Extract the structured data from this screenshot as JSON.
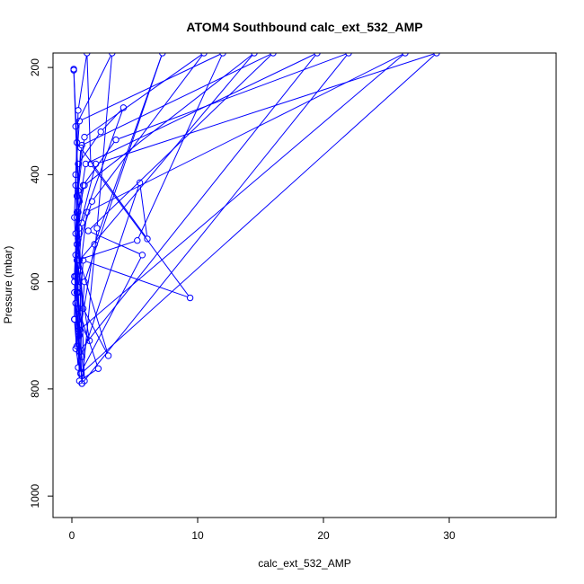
{
  "chart_data": {
    "type": "line",
    "title": "ATOM4 Southbound calc_ext_532_AMP",
    "xlabel": "calc_ext_532_AMP",
    "ylabel": "Pressure (mbar)",
    "xlim": [
      -1.5,
      38.5
    ],
    "ylim": [
      1040,
      173
    ],
    "y_reversed": true,
    "x_ticks": [
      0,
      10,
      20,
      30
    ],
    "y_ticks": [
      200,
      400,
      600,
      800,
      1000
    ],
    "grid": false,
    "legend": "none",
    "series": [
      {
        "color": "#0000ff",
        "marker": "open-circle",
        "line": true,
        "points": [
          [
            0.15,
            203
          ],
          [
            0.4,
            340
          ],
          [
            0.2,
            480
          ],
          [
            0.5,
            620
          ],
          [
            0.8,
            790
          ],
          [
            2.0,
            500
          ],
          [
            3.2,
            173
          ],
          [
            0.3,
            310
          ],
          [
            0.6,
            450
          ],
          [
            0.2,
            600
          ],
          [
            0.4,
            720
          ],
          [
            0.9,
            560
          ],
          [
            9.4,
            630
          ],
          [
            1.5,
            380
          ],
          [
            1.2,
            173
          ],
          [
            0.5,
            280
          ],
          [
            0.3,
            420
          ],
          [
            0.6,
            580
          ],
          [
            0.8,
            740
          ],
          [
            5.4,
            415
          ],
          [
            6.0,
            520
          ],
          [
            0.7,
            350
          ],
          [
            0.4,
            470
          ],
          [
            0.2,
            670
          ],
          [
            0.5,
            760
          ],
          [
            1.0,
            600
          ],
          [
            7.2,
            173
          ],
          [
            1.8,
            530
          ],
          [
            0.6,
            700
          ],
          [
            0.3,
            510
          ],
          [
            0.5,
            380
          ],
          [
            2.3,
            320
          ],
          [
            4.1,
            275
          ],
          [
            0.8,
            490
          ],
          [
            0.4,
            620
          ],
          [
            0.6,
            785
          ],
          [
            2.1,
            762
          ],
          [
            0.5,
            650
          ],
          [
            0.3,
            550
          ],
          [
            1.6,
            450
          ],
          [
            10.5,
            173
          ],
          [
            1.0,
            330
          ],
          [
            0.5,
            430
          ],
          [
            0.2,
            590
          ],
          [
            0.7,
            680
          ],
          [
            1.4,
            710
          ],
          [
            0.4,
            560
          ],
          [
            5.2,
            523
          ],
          [
            12.0,
            173
          ],
          [
            0.6,
            300
          ],
          [
            0.3,
            400
          ],
          [
            0.5,
            520
          ],
          [
            0.9,
            650
          ],
          [
            2.9,
            738
          ],
          [
            0.6,
            560
          ],
          [
            14.5,
            173
          ],
          [
            1.0,
            420
          ],
          [
            0.4,
            480
          ],
          [
            0.2,
            670
          ],
          [
            0.7,
            770
          ],
          [
            5.6,
            550
          ],
          [
            1.3,
            505
          ],
          [
            16.0,
            173
          ],
          [
            0.8,
            345
          ],
          [
            0.4,
            440
          ],
          [
            0.3,
            590
          ],
          [
            0.6,
            730
          ],
          [
            19.5,
            173
          ],
          [
            1.1,
            380
          ],
          [
            0.5,
            470
          ],
          [
            0.3,
            640
          ],
          [
            0.8,
            790
          ],
          [
            22.0,
            173
          ],
          [
            3.5,
            335
          ],
          [
            0.9,
            420
          ],
          [
            0.4,
            530
          ],
          [
            0.6,
            690
          ],
          [
            26.5,
            173
          ],
          [
            1.2,
            470
          ],
          [
            0.5,
            610
          ],
          [
            0.3,
            725
          ],
          [
            0.7,
            772
          ],
          [
            29.0,
            173
          ],
          [
            1.9,
            380
          ],
          [
            0.6,
            500
          ],
          [
            0.2,
            620
          ],
          [
            1.0,
            785
          ],
          [
            0.15,
            205
          ]
        ]
      }
    ]
  }
}
